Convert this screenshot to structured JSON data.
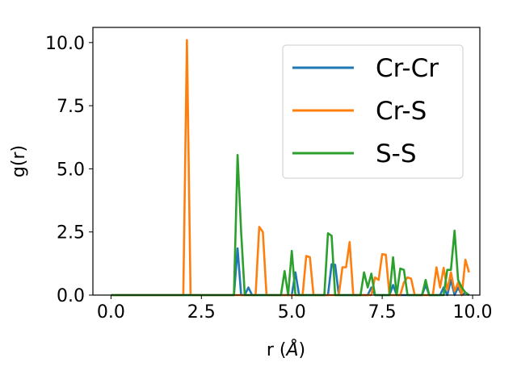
{
  "chart_data": {
    "type": "line",
    "xlabel": "r (Å)",
    "xlabel_parts": [
      "r (",
      "Å",
      ")"
    ],
    "ylabel": "g(r)",
    "xlim": [
      -0.5,
      10.2
    ],
    "ylim": [
      0.0,
      10.6
    ],
    "xticks": [
      0.0,
      2.5,
      5.0,
      7.5,
      10.0
    ],
    "xtick_labels": [
      "0.0",
      "2.5",
      "5.0",
      "7.5",
      "10.0"
    ],
    "yticks": [
      0.0,
      2.5,
      5.0,
      7.5,
      10.0
    ],
    "ytick_labels": [
      "0.0",
      "2.5",
      "5.0",
      "7.5",
      "10.0"
    ],
    "grid": false,
    "legend_position": "top-right",
    "series": [
      {
        "name": "Cr-Cr",
        "color": "#1f77b4",
        "x": [
          0.0,
          3.4,
          3.5,
          3.6,
          3.7,
          3.8,
          3.9,
          4.0,
          5.0,
          5.1,
          5.2,
          6.0,
          6.1,
          6.2,
          6.3,
          6.4,
          7.1,
          7.2,
          7.3,
          7.4,
          7.7,
          7.8,
          7.9,
          8.0,
          8.6,
          8.7,
          8.8,
          8.9,
          9.1,
          9.2,
          9.3,
          9.4,
          9.5,
          9.6,
          9.7,
          9.8,
          9.9
        ],
        "y": [
          0.0,
          0.0,
          1.85,
          0.0,
          0.0,
          0.3,
          0.0,
          0.0,
          0.0,
          0.9,
          0.0,
          0.0,
          1.22,
          1.2,
          0.0,
          0.0,
          0.0,
          0.3,
          0.0,
          0.0,
          0.0,
          0.4,
          0.0,
          0.0,
          0.0,
          0.4,
          0.0,
          0.0,
          0.0,
          0.3,
          0.0,
          0.6,
          0.0,
          0.3,
          0.0,
          0.1,
          0.0
        ]
      },
      {
        "name": "Cr-S",
        "color": "#ff7f0e",
        "x": [
          0.0,
          2.0,
          2.1,
          2.2,
          2.3,
          3.9,
          4.0,
          4.1,
          4.2,
          4.3,
          4.4,
          5.2,
          5.3,
          5.4,
          5.5,
          5.6,
          6.3,
          6.4,
          6.5,
          6.6,
          6.7,
          7.2,
          7.3,
          7.4,
          7.5,
          7.6,
          7.7,
          8.0,
          8.1,
          8.2,
          8.3,
          8.4,
          8.5,
          8.8,
          8.9,
          9.0,
          9.1,
          9.2,
          9.3,
          9.4,
          9.5,
          9.6,
          9.7,
          9.8,
          9.9
        ],
        "y": [
          0.0,
          0.0,
          10.1,
          0.0,
          0.0,
          0.0,
          0.0,
          2.7,
          2.5,
          0.0,
          0.0,
          0.0,
          0.0,
          1.55,
          1.5,
          0.0,
          0.0,
          1.1,
          1.1,
          2.1,
          0.0,
          0.0,
          0.7,
          0.6,
          1.62,
          1.6,
          0.0,
          0.0,
          0.5,
          0.7,
          0.65,
          0.0,
          0.0,
          0.0,
          0.0,
          1.1,
          0.3,
          1.08,
          0.2,
          0.9,
          0.15,
          0.5,
          0.0,
          1.4,
          0.9
        ]
      },
      {
        "name": "S-S",
        "color": "#2ca02c",
        "x": [
          0.0,
          3.4,
          3.5,
          3.6,
          3.7,
          3.8,
          4.6,
          4.7,
          4.8,
          4.9,
          5.0,
          5.1,
          5.2,
          5.3,
          5.9,
          6.0,
          6.1,
          6.2,
          6.3,
          6.4,
          6.5,
          6.6,
          6.9,
          7.0,
          7.1,
          7.2,
          7.3,
          7.4,
          7.5,
          7.6,
          7.7,
          7.8,
          7.9,
          8.0,
          8.1,
          8.2,
          8.3,
          8.6,
          8.7,
          8.8,
          8.9,
          9.0,
          9.1,
          9.2,
          9.3,
          9.4,
          9.5,
          9.6,
          9.7,
          9.8,
          9.9
        ],
        "y": [
          0.0,
          0.0,
          5.55,
          2.5,
          0.0,
          0.0,
          0.0,
          0.0,
          0.95,
          0.0,
          1.75,
          0.0,
          0.0,
          0.0,
          0.0,
          2.45,
          2.35,
          0.0,
          0.0,
          0.0,
          0.0,
          0.0,
          0.0,
          0.9,
          0.3,
          0.85,
          0.0,
          0.0,
          0.0,
          0.0,
          0.0,
          1.5,
          0.0,
          1.05,
          1.0,
          0.0,
          0.0,
          0.0,
          0.6,
          0.0,
          0.0,
          0.0,
          0.0,
          0.0,
          1.0,
          1.0,
          2.55,
          0.6,
          0.3,
          0.1,
          0.0
        ]
      }
    ]
  }
}
